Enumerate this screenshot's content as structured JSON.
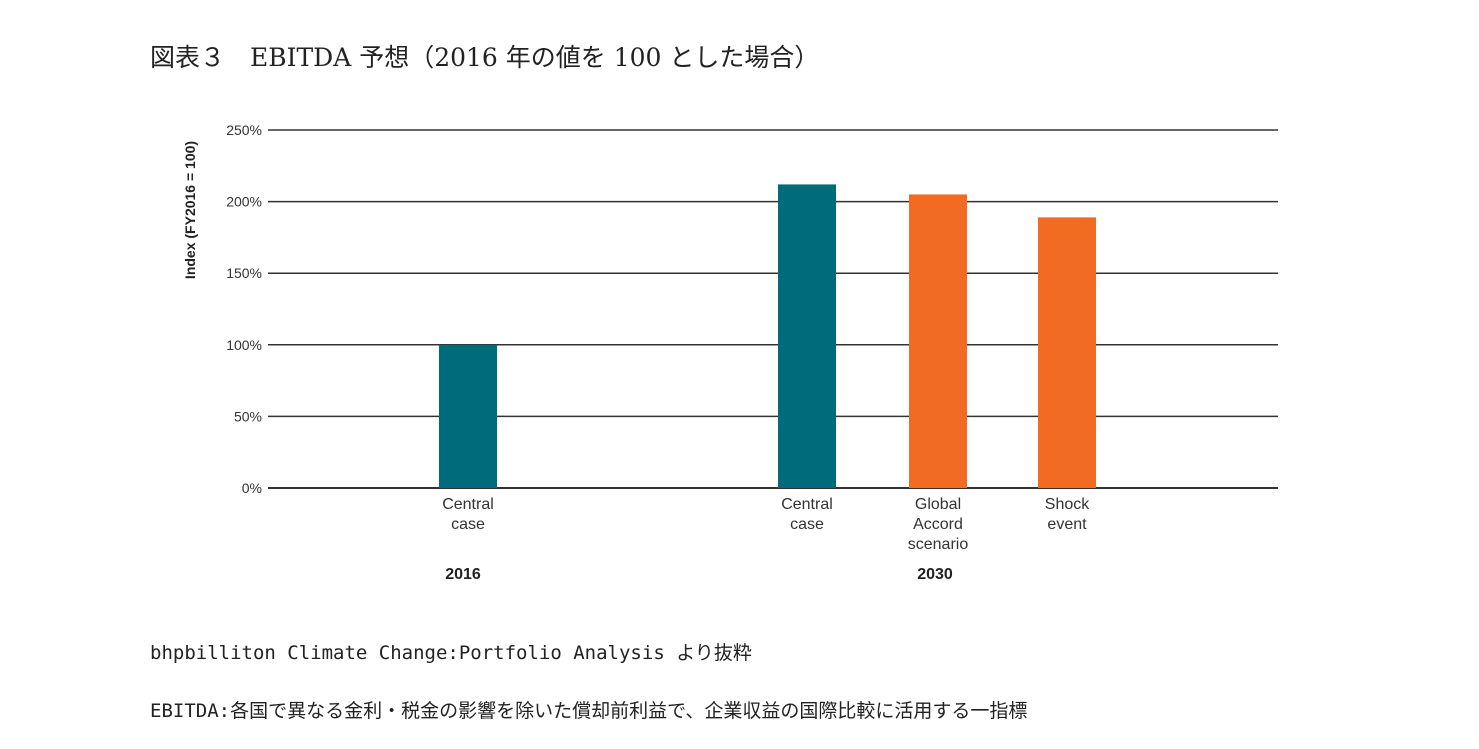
{
  "title": "図表３　EBITDA 予想（2016 年の値を 100 とした場合）",
  "notes": [
    "bhpbilliton Climate Change:Portfolio Analysis より抜粋",
    "EBITDA:各国で異なる金利・税金の影響を除いた償却前利益で、企業収益の国際比較に活用する一指標"
  ],
  "chart_data": {
    "type": "bar",
    "ylabel": "Index (FY2016 = 100)",
    "ylim": [
      0,
      250
    ],
    "yticks": [
      0,
      50,
      100,
      150,
      200,
      250
    ],
    "ytick_labels": [
      "0%",
      "50%",
      "100%",
      "150%",
      "200%",
      "250%"
    ],
    "grid": true,
    "groups": [
      {
        "label": "2016",
        "bars": [
          {
            "category": "Central case",
            "value": 100,
            "color": "#006b7b"
          }
        ]
      },
      {
        "label": "2030",
        "bars": [
          {
            "category": "Central case",
            "value": 212,
            "color": "#006b7b"
          },
          {
            "category": "Global Accord scenario",
            "value": 205,
            "color": "#f26b22"
          },
          {
            "category": "Shock event",
            "value": 189,
            "color": "#f26b22"
          }
        ]
      }
    ]
  }
}
